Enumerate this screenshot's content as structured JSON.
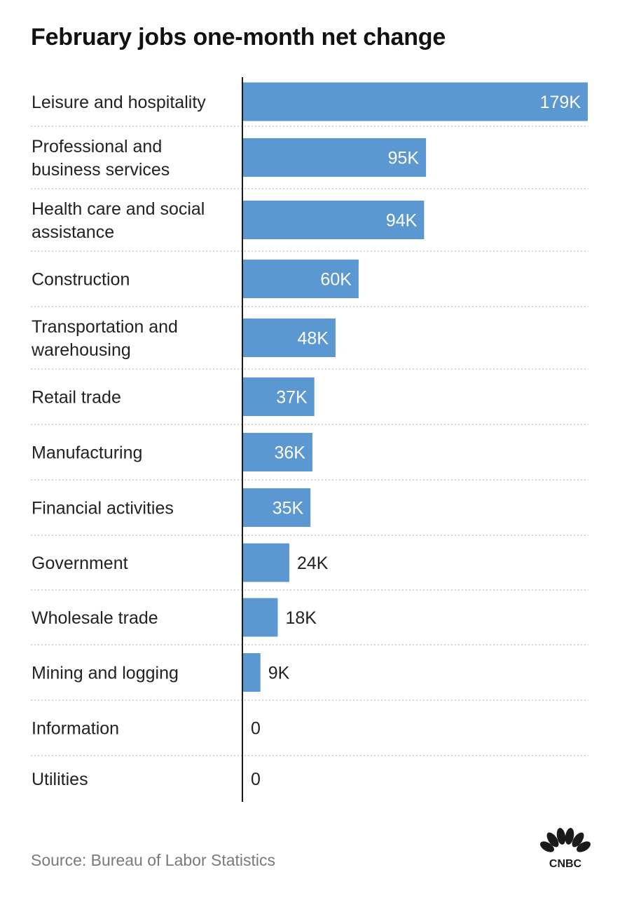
{
  "chart_data": {
    "type": "bar",
    "orientation": "horizontal",
    "title": "February jobs one-month net change",
    "categories": [
      "Leisure and hospitality",
      "Professional and business services",
      "Health care and social assistance",
      "Construction",
      "Transportation and warehousing",
      "Retail trade",
      "Manufacturing",
      "Financial activities",
      "Government",
      "Wholesale trade",
      "Mining and logging",
      "Information",
      "Utilities"
    ],
    "category_lines": [
      [
        "Leisure and hospitality"
      ],
      [
        "Professional and",
        "business services"
      ],
      [
        "Health care and social",
        "assistance"
      ],
      [
        "Construction"
      ],
      [
        "Transportation and",
        "warehousing"
      ],
      [
        "Retail trade"
      ],
      [
        "Manufacturing"
      ],
      [
        "Financial activities"
      ],
      [
        "Government"
      ],
      [
        "Wholesale trade"
      ],
      [
        "Mining and logging"
      ],
      [
        "Information"
      ],
      [
        "Utilities"
      ]
    ],
    "values": [
      179,
      95,
      94,
      60,
      48,
      37,
      36,
      35,
      24,
      18,
      9,
      0,
      0
    ],
    "value_labels": [
      "179K",
      "95K",
      "94K",
      "60K",
      "48K",
      "37K",
      "36K",
      "35K",
      "24K",
      "18K",
      "9K",
      "0",
      "0"
    ],
    "unit": "thousands of jobs",
    "xlim": [
      0,
      179
    ],
    "grid": false,
    "bar_color": "#5b97d1",
    "source": "Source: Bureau of Labor Statistics"
  },
  "brand": {
    "logo_text": "CNBC",
    "logo_icon": "nbc-peacock-icon",
    "peacock_colors": [
      "#1a1a1a"
    ]
  }
}
